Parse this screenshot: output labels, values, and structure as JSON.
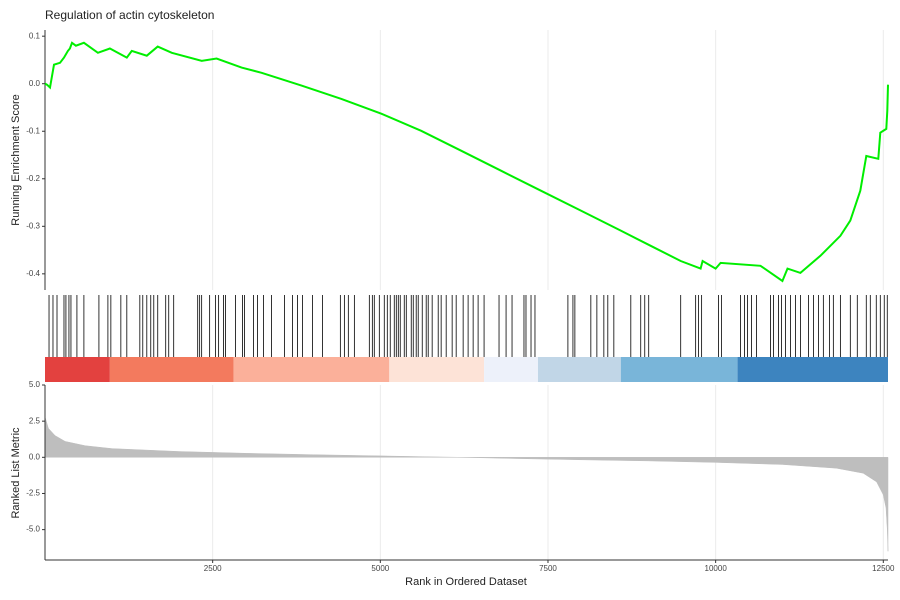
{
  "chart_data": {
    "type": "gsea",
    "title": "Regulation of actin cytoskeleton",
    "xlabel": "Rank in Ordered Dataset",
    "xlim": [
      0,
      12570
    ],
    "xticks": [
      2500,
      5000,
      7500,
      10000,
      12500
    ],
    "grid": true,
    "running_es": {
      "ylabel": "Running Enrichment Score",
      "color": "#00ee00",
      "ylim": [
        -0.434,
        0.113
      ],
      "yticks": [
        0.1,
        {
          "value": 0,
          "label": "0.0"
        },
        -0.1,
        -0.2,
        -0.3,
        -0.4
      ],
      "x": [
        0,
        30,
        74,
        134,
        223,
        283,
        342,
        372,
        402,
        461,
        580,
        789,
        967,
        1220,
        1295,
        1518,
        1681,
        1890,
        2336,
        2559,
        2931,
        3229,
        3824,
        4419,
        5015,
        5610,
        6205,
        6800,
        7395,
        7991,
        8586,
        9032,
        9479,
        9776,
        9806,
        9999,
        10074,
        10669,
        10996,
        11071,
        11264,
        11562,
        11860,
        12008,
        12157,
        12246,
        12425,
        12455,
        12544,
        12559,
        12570
      ],
      "values": [
        0,
        -0.002,
        -0.008,
        0.04,
        0.044,
        0.055,
        0.069,
        0.074,
        0.086,
        0.08,
        0.086,
        0.065,
        0.074,
        0.055,
        0.069,
        0.059,
        0.078,
        0.065,
        0.048,
        0.053,
        0.034,
        0.023,
        -0.004,
        -0.032,
        -0.063,
        -0.099,
        -0.141,
        -0.183,
        -0.225,
        -0.267,
        -0.309,
        -0.341,
        -0.373,
        -0.389,
        -0.373,
        -0.389,
        -0.377,
        -0.383,
        -0.415,
        -0.389,
        -0.398,
        -0.362,
        -0.32,
        -0.288,
        -0.225,
        -0.152,
        -0.158,
        -0.103,
        -0.095,
        -0.057,
        -0.002
      ]
    },
    "hits": [
      60,
      119,
      179,
      283,
      312,
      357,
      387,
      476,
      580,
      804,
      938,
      982,
      1131,
      1220,
      1414,
      1458,
      1518,
      1577,
      1622,
      1681,
      1800,
      1845,
      1919,
      2277,
      2306,
      2336,
      2455,
      2544,
      2589,
      2663,
      2693,
      2842,
      2946,
      2976,
      3110,
      3169,
      3259,
      3378,
      3571,
      3690,
      3764,
      3839,
      3988,
      4137,
      4404,
      4464,
      4523,
      4613,
      4836,
      4881,
      4910,
      4985,
      5059,
      5104,
      5148,
      5208,
      5238,
      5268,
      5297,
      5357,
      5387,
      5461,
      5491,
      5535,
      5565,
      5625,
      5684,
      5714,
      5773,
      5863,
      5907,
      5982,
      6071,
      6131,
      6235,
      6309,
      6384,
      6458,
      6547,
      6770,
      6875,
      6964,
      7142,
      7172,
      7247,
      7306,
      7797,
      7872,
      7901,
      8139,
      8229,
      8333,
      8392,
      8482,
      8735,
      8883,
      8943,
      9002,
      9479,
      9702,
      9746,
      9791,
      10044,
      10089,
      10371,
      10431,
      10476,
      10535,
      10609,
      10818,
      10862,
      10937,
      10982,
      11041,
      11116,
      11190,
      11264,
      11383,
      11458,
      11532,
      11606,
      11696,
      11755,
      11860,
      12008,
      12112,
      12246,
      12306,
      12395,
      12455,
      12514,
      12559
    ],
    "color_bands": [
      {
        "start": 0,
        "end": 967,
        "color": "#e3413f"
      },
      {
        "start": 967,
        "end": 2812,
        "color": "#f37a5e"
      },
      {
        "start": 2812,
        "end": 5134,
        "color": "#fbb09a"
      },
      {
        "start": 5134,
        "end": 6547,
        "color": "#fde3d7"
      },
      {
        "start": 6547,
        "end": 7351,
        "color": "#edf1fa"
      },
      {
        "start": 7351,
        "end": 8586,
        "color": "#c1d6e7"
      },
      {
        "start": 8586,
        "end": 10327,
        "color": "#79b5d9"
      },
      {
        "start": 10327,
        "end": 12570,
        "color": "#3d84bf"
      }
    ],
    "ranked_metric": {
      "ylabel": "Ranked List Metric",
      "color": "#bebebe",
      "ylim": [
        -7.1,
        5.0
      ],
      "yticks": [
        {
          "value": 5,
          "label": "5.0"
        },
        {
          "value": 2.5,
          "label": "2.5"
        },
        {
          "value": 0,
          "label": "0.0"
        },
        {
          "value": -2.5,
          "label": "-2.5"
        },
        {
          "value": -5,
          "label": "-5.0"
        }
      ],
      "x": [
        0,
        50,
        150,
        300,
        600,
        1000,
        2000,
        3000,
        4000,
        5000,
        5800,
        6200,
        7000,
        8000,
        9000,
        10000,
        11000,
        11800,
        12200,
        12400,
        12500,
        12540,
        12560,
        12570
      ],
      "values": [
        2.8,
        2.0,
        1.5,
        1.1,
        0.8,
        0.6,
        0.4,
        0.28,
        0.18,
        0.1,
        0.03,
        0,
        -0.08,
        -0.17,
        -0.25,
        -0.35,
        -0.5,
        -0.75,
        -1.1,
        -1.7,
        -2.6,
        -3.5,
        -5,
        -6.5
      ]
    }
  }
}
